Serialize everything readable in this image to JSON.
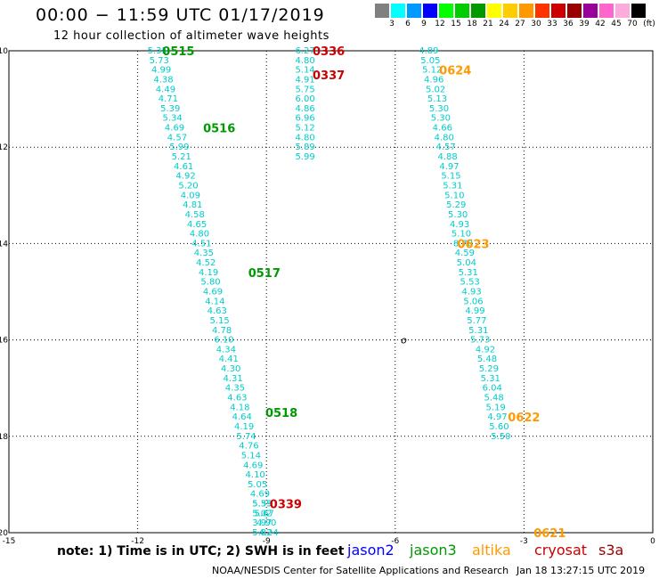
{
  "title": "00:00 − 11:59 UTC 01/17/2019",
  "subtitle": "12 hour collection of altimeter wave heights",
  "legend": {
    "colors": [
      "#808080",
      "#00ffff",
      "#0099ff",
      "#0000ff",
      "#00ff00",
      "#00cc00",
      "#009900",
      "#ffff00",
      "#ffcc00",
      "#ff9900",
      "#ff3300",
      "#cc0000",
      "#990000",
      "#990099",
      "#ff66cc",
      "#ffaadd",
      "#000000"
    ],
    "labels": [
      "3",
      "6",
      "9",
      "12",
      "15",
      "18",
      "21",
      "24",
      "27",
      "30",
      "33",
      "36",
      "39",
      "42",
      "45",
      "70"
    ],
    "unit": "(ft)"
  },
  "axes": {
    "x_ticks": [
      "-15",
      "-12",
      "-9",
      "-6",
      "-3",
      "0"
    ],
    "y_ticks": [
      "-10",
      "-12",
      "-14",
      "-16",
      "-18",
      "-20"
    ]
  },
  "note": "note:  1) Time is in UTC;  2) SWH is in feet",
  "satellites": [
    {
      "name": "jason2",
      "color": "#0000ff"
    },
    {
      "name": "jason3",
      "color": "#009900"
    },
    {
      "name": "altika",
      "color": "#ff9900"
    },
    {
      "name": "cryosat",
      "color": "#cc0000"
    },
    {
      "name": "s3a",
      "color": "#990000"
    }
  ],
  "footer": "NOAA/NESDIS Center for Satellite Applications and Research",
  "footer_time": "Jan 18 13:27:15 UTC 2019",
  "island_marker": "o",
  "tracks": [
    {
      "sat": "jason3",
      "time": "0515",
      "time_color": "#009900",
      "vals": [
        {
          "lon": -11.54,
          "lat": -10.0,
          "v": "5.35"
        },
        {
          "lon": -11.5,
          "lat": -10.2,
          "v": "5.73"
        },
        {
          "lon": -11.45,
          "lat": -10.4,
          "v": "4.99"
        },
        {
          "lon": -11.4,
          "lat": -10.6,
          "v": "4.38"
        },
        {
          "lon": -11.35,
          "lat": -10.8,
          "v": "4.49"
        },
        {
          "lon": -11.29,
          "lat": -11.0,
          "v": "4.71"
        },
        {
          "lon": -11.24,
          "lat": -11.2,
          "v": "5.39"
        },
        {
          "lon": -11.19,
          "lat": -11.4,
          "v": "5.34"
        },
        {
          "lon": -11.14,
          "lat": -11.6,
          "v": "4.69"
        },
        {
          "lon": -11.08,
          "lat": -11.8,
          "v": "4.57"
        },
        {
          "lon": -11.03,
          "lat": -12.0,
          "v": "5.99"
        },
        {
          "lon": -10.98,
          "lat": -12.2,
          "v": "5.21"
        },
        {
          "lon": -10.93,
          "lat": -12.4,
          "v": "4.61"
        },
        {
          "lon": -10.88,
          "lat": -12.6,
          "v": "4.92"
        },
        {
          "lon": -10.82,
          "lat": -12.8,
          "v": "5.20"
        },
        {
          "lon": -10.77,
          "lat": -13.0,
          "v": "4.09"
        },
        {
          "lon": -10.72,
          "lat": -13.2,
          "v": "4.81"
        },
        {
          "lon": -10.67,
          "lat": -13.4,
          "v": "4.58"
        },
        {
          "lon": -10.62,
          "lat": -13.6,
          "v": "4.65"
        },
        {
          "lon": -10.56,
          "lat": -13.8,
          "v": "4.80"
        },
        {
          "lon": -10.51,
          "lat": -14.0,
          "v": "4.51"
        },
        {
          "lon": -10.46,
          "lat": -14.2,
          "v": "4.35"
        },
        {
          "lon": -10.41,
          "lat": -14.4,
          "v": "4.52"
        },
        {
          "lon": -10.35,
          "lat": -14.6,
          "v": "4.19"
        },
        {
          "lon": -10.3,
          "lat": -14.8,
          "v": "5.80"
        },
        {
          "lon": -10.25,
          "lat": -15.0,
          "v": "4.69"
        },
        {
          "lon": -10.2,
          "lat": -15.2,
          "v": "4.14"
        },
        {
          "lon": -10.15,
          "lat": -15.4,
          "v": "4.63"
        },
        {
          "lon": -10.09,
          "lat": -15.6,
          "v": "5.15"
        },
        {
          "lon": -10.04,
          "lat": -15.8,
          "v": "4.78"
        },
        {
          "lon": -9.99,
          "lat": -16.0,
          "v": "6.10"
        },
        {
          "lon": -9.94,
          "lat": -16.2,
          "v": "4.34"
        },
        {
          "lon": -9.88,
          "lat": -16.4,
          "v": "4.41"
        },
        {
          "lon": -9.83,
          "lat": -16.6,
          "v": "4.30"
        },
        {
          "lon": -9.78,
          "lat": -16.8,
          "v": "4.31"
        },
        {
          "lon": -9.73,
          "lat": -17.0,
          "v": "4.35"
        },
        {
          "lon": -9.68,
          "lat": -17.2,
          "v": "4.63"
        },
        {
          "lon": -9.62,
          "lat": -17.4,
          "v": "4.18"
        },
        {
          "lon": -9.57,
          "lat": -17.6,
          "v": "4.64"
        },
        {
          "lon": -9.52,
          "lat": -17.8,
          "v": "4.19"
        },
        {
          "lon": -9.47,
          "lat": -18.0,
          "v": "5.74"
        },
        {
          "lon": -9.41,
          "lat": -18.2,
          "v": "4.76"
        },
        {
          "lon": -9.36,
          "lat": -18.4,
          "v": "5.14"
        },
        {
          "lon": -9.31,
          "lat": -18.6,
          "v": "4.69"
        },
        {
          "lon": -9.26,
          "lat": -18.8,
          "v": "4.10"
        },
        {
          "lon": -9.21,
          "lat": -19.0,
          "v": "5.05"
        },
        {
          "lon": -9.15,
          "lat": -19.2,
          "v": "4.69"
        },
        {
          "lon": -9.1,
          "lat": -19.4,
          "v": "5.59"
        },
        {
          "lon": -9.05,
          "lat": -19.6,
          "v": "5.67"
        },
        {
          "lon": -9.0,
          "lat": -19.8,
          "v": "4.90"
        },
        {
          "lon": -8.95,
          "lat": -20.0,
          "v": "4.24"
        }
      ]
    },
    {
      "sat": "cryosat",
      "time": "0336",
      "time_color": "#cc0000",
      "vals": [
        {
          "lon": -8.1,
          "lat": -10.0,
          "v": "6.27"
        },
        {
          "lon": -8.1,
          "lat": -10.2,
          "v": "4.80"
        },
        {
          "lon": -8.1,
          "lat": -10.4,
          "v": "5.14"
        },
        {
          "lon": -8.1,
          "lat": -10.6,
          "v": "4.91"
        },
        {
          "lon": -8.1,
          "lat": -10.8,
          "v": "5.75"
        },
        {
          "lon": -8.1,
          "lat": -11.0,
          "v": "6.00"
        },
        {
          "lon": -8.1,
          "lat": -11.2,
          "v": "4.86"
        },
        {
          "lon": -8.1,
          "lat": -11.4,
          "v": "6.96"
        },
        {
          "lon": -8.1,
          "lat": -11.6,
          "v": "5.12"
        },
        {
          "lon": -8.1,
          "lat": -11.8,
          "v": "4.80"
        },
        {
          "lon": -8.1,
          "lat": -12.0,
          "v": "5.89"
        },
        {
          "lon": -8.1,
          "lat": -12.2,
          "v": "5.99"
        }
      ]
    },
    {
      "sat": "cryosat",
      "time": "0339",
      "time_color": "#cc0000",
      "vals": [
        {
          "lon": -9.1,
          "lat": -19.4,
          "v": "5.35"
        },
        {
          "lon": -9.1,
          "lat": -19.6,
          "v": "5.02"
        },
        {
          "lon": -9.1,
          "lat": -19.8,
          "v": "3.97"
        },
        {
          "lon": -9.1,
          "lat": -20.0,
          "v": "5.82"
        }
      ]
    },
    {
      "sat": "altika",
      "time": "0624",
      "time_color": "#ff9900",
      "vals": [
        {
          "lon": -5.22,
          "lat": -10.0,
          "v": "4.89"
        },
        {
          "lon": -5.18,
          "lat": -10.2,
          "v": "5.05"
        },
        {
          "lon": -5.14,
          "lat": -10.4,
          "v": "5.12"
        },
        {
          "lon": -5.1,
          "lat": -10.6,
          "v": "4.96"
        },
        {
          "lon": -5.06,
          "lat": -10.8,
          "v": "5.02"
        },
        {
          "lon": -5.02,
          "lat": -11.0,
          "v": "5.13"
        },
        {
          "lon": -4.98,
          "lat": -11.2,
          "v": "5.30"
        },
        {
          "lon": -4.94,
          "lat": -11.4,
          "v": "5.30"
        },
        {
          "lon": -4.9,
          "lat": -11.6,
          "v": "4.66"
        },
        {
          "lon": -4.86,
          "lat": -11.8,
          "v": "4.80"
        },
        {
          "lon": -4.82,
          "lat": -12.0,
          "v": "4.57"
        },
        {
          "lon": -4.78,
          "lat": -12.2,
          "v": "4.88"
        },
        {
          "lon": -4.74,
          "lat": -12.4,
          "v": "4.97"
        },
        {
          "lon": -4.7,
          "lat": -12.6,
          "v": "5.15"
        },
        {
          "lon": -4.66,
          "lat": -12.8,
          "v": "5.31"
        },
        {
          "lon": -4.62,
          "lat": -13.0,
          "v": "5.10"
        },
        {
          "lon": -4.58,
          "lat": -13.2,
          "v": "5.29"
        },
        {
          "lon": -4.54,
          "lat": -13.4,
          "v": "5.30"
        },
        {
          "lon": -4.5,
          "lat": -13.6,
          "v": "4.93"
        },
        {
          "lon": -4.46,
          "lat": -13.8,
          "v": "5.10"
        },
        {
          "lon": -4.42,
          "lat": -14.0,
          "v": "8.70"
        },
        {
          "lon": -4.38,
          "lat": -14.2,
          "v": "4.59"
        },
        {
          "lon": -4.34,
          "lat": -14.4,
          "v": "5.04"
        },
        {
          "lon": -4.3,
          "lat": -14.6,
          "v": "5.31"
        },
        {
          "lon": -4.26,
          "lat": -14.8,
          "v": "5.53"
        },
        {
          "lon": -4.22,
          "lat": -15.0,
          "v": "4.93"
        },
        {
          "lon": -4.18,
          "lat": -15.2,
          "v": "5.06"
        },
        {
          "lon": -4.14,
          "lat": -15.4,
          "v": "4.99"
        },
        {
          "lon": -4.1,
          "lat": -15.6,
          "v": "5.77"
        },
        {
          "lon": -4.06,
          "lat": -15.8,
          "v": "5.31"
        },
        {
          "lon": -4.02,
          "lat": -16.0,
          "v": "5.73"
        }
      ]
    },
    {
      "sat": "altika",
      "time": "0623",
      "time_color": "#ff9900",
      "vals": []
    },
    {
      "sat": "altika",
      "time": "0622",
      "time_color": "#ff9900",
      "vals": [
        {
          "lon": -3.9,
          "lat": -16.2,
          "v": "4.92"
        },
        {
          "lon": -3.86,
          "lat": -16.4,
          "v": "5.48"
        },
        {
          "lon": -3.82,
          "lat": -16.6,
          "v": "5.29"
        },
        {
          "lon": -3.78,
          "lat": -16.8,
          "v": "5.31"
        },
        {
          "lon": -3.74,
          "lat": -17.0,
          "v": "6.04"
        },
        {
          "lon": -3.7,
          "lat": -17.2,
          "v": "5.48"
        },
        {
          "lon": -3.66,
          "lat": -17.4,
          "v": "5.19"
        },
        {
          "lon": -3.62,
          "lat": -17.6,
          "v": "4.97"
        },
        {
          "lon": -3.58,
          "lat": -17.8,
          "v": "5.60"
        },
        {
          "lon": -3.54,
          "lat": -18.0,
          "v": "5.50"
        }
      ]
    },
    {
      "sat": "jason3",
      "time": "0516",
      "time_color": "#009900",
      "vals": []
    },
    {
      "sat": "jason3",
      "time": "0517",
      "time_color": "#009900",
      "vals": []
    },
    {
      "sat": "jason3",
      "time": "0518",
      "time_color": "#009900",
      "vals": []
    },
    {
      "sat": "cryosat",
      "time": "0337",
      "time_color": "#cc0000",
      "vals": []
    },
    {
      "sat": "altika",
      "time": "0621",
      "time_color": "#ff9900",
      "vals": []
    }
  ]
}
